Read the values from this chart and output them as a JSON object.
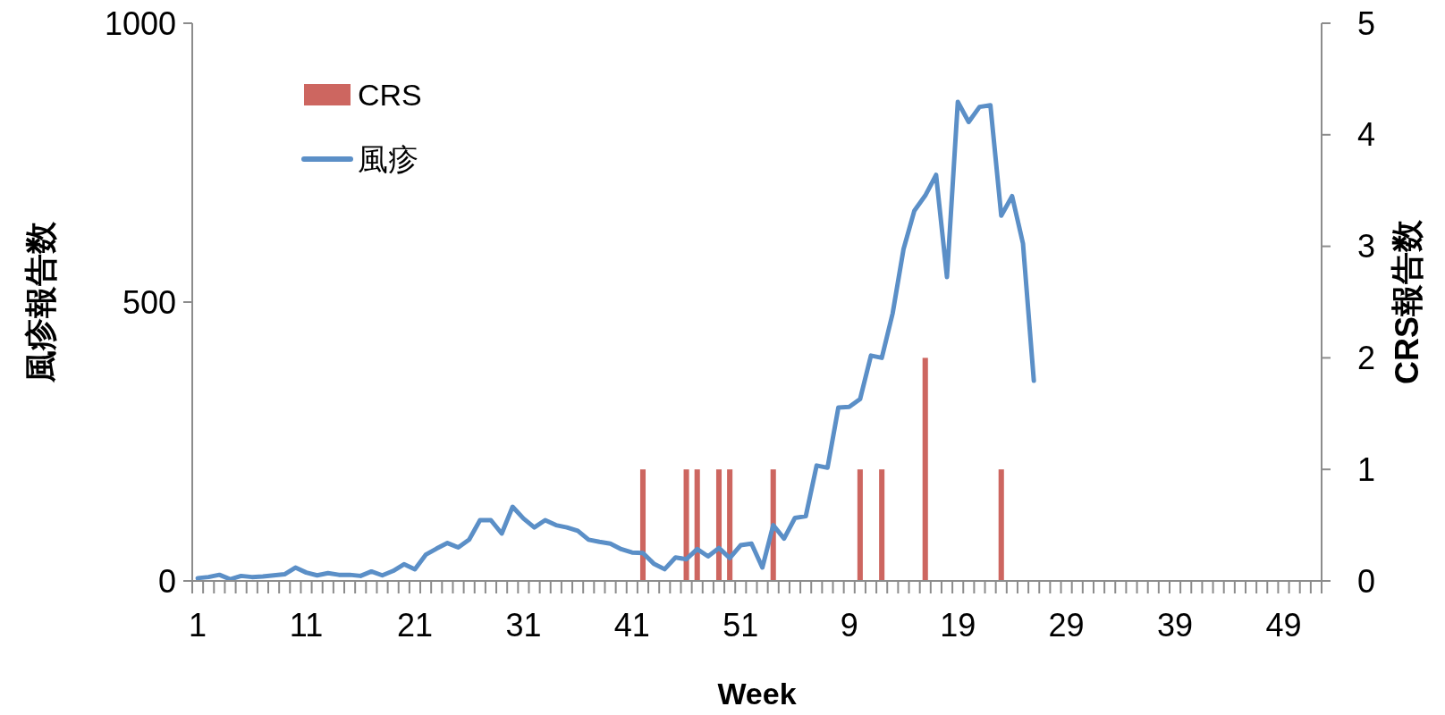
{
  "chart_data": {
    "type": "bar",
    "xlabel": "Week",
    "ylabel": "風疹報告数",
    "y2label": "CRS報告数",
    "categories": [
      "1",
      null,
      null,
      null,
      null,
      null,
      null,
      null,
      null,
      null,
      "11",
      null,
      null,
      null,
      null,
      null,
      null,
      null,
      null,
      null,
      "21",
      null,
      null,
      null,
      null,
      null,
      null,
      null,
      null,
      null,
      "31",
      null,
      null,
      null,
      null,
      null,
      null,
      null,
      null,
      null,
      "41",
      null,
      null,
      null,
      null,
      null,
      null,
      null,
      null,
      null,
      "51",
      null,
      null,
      null,
      null,
      null,
      null,
      null,
      null,
      null,
      "9",
      null,
      null,
      null,
      null,
      null,
      null,
      null,
      null,
      null,
      "19",
      null,
      null,
      null,
      null,
      null,
      null,
      null,
      null,
      null,
      "29",
      null,
      null,
      null,
      null,
      null,
      null,
      null,
      null,
      null,
      "39",
      null,
      null,
      null,
      null,
      null,
      null,
      null,
      null,
      null,
      "49",
      null,
      null,
      null
    ],
    "series": [
      {
        "name": "CRS",
        "axis": "y2",
        "color": "#cd6660",
        "values": [
          null,
          null,
          null,
          null,
          null,
          null,
          null,
          null,
          null,
          null,
          null,
          null,
          null,
          null,
          null,
          null,
          null,
          null,
          null,
          null,
          null,
          null,
          null,
          null,
          null,
          null,
          null,
          null,
          null,
          null,
          null,
          null,
          null,
          null,
          null,
          null,
          null,
          null,
          null,
          null,
          null,
          1,
          null,
          null,
          null,
          1,
          1,
          null,
          1,
          1,
          null,
          null,
          null,
          1,
          null,
          null,
          null,
          null,
          null,
          null,
          null,
          1,
          null,
          1,
          null,
          null,
          null,
          2,
          null,
          null,
          null,
          null,
          null,
          null,
          1,
          null,
          null,
          null,
          null,
          null,
          null,
          null,
          null,
          null,
          null,
          null,
          null,
          null,
          null,
          null,
          null,
          null,
          null,
          null,
          null,
          null,
          null,
          null,
          null,
          null,
          null,
          null,
          null,
          null
        ]
      },
      {
        "name": "風疹",
        "type": "line",
        "color": "#5b8fc7",
        "values": [
          5,
          7,
          11,
          3,
          9,
          7,
          8,
          10,
          12,
          24,
          15,
          10,
          14,
          11,
          11,
          9,
          17,
          10,
          18,
          30,
          21,
          47,
          58,
          68,
          60,
          74,
          109,
          109,
          85,
          133,
          112,
          96,
          109,
          100,
          96,
          90,
          74,
          70,
          67,
          57,
          51,
          50,
          31,
          21,
          42,
          39,
          57,
          44,
          59,
          41,
          64,
          67,
          24,
          100,
          76,
          113,
          116,
          207,
          203,
          311,
          312,
          326,
          404,
          400,
          480,
          595,
          664,
          691,
          728,
          545,
          859,
          823,
          850,
          853,
          655,
          690,
          605,
          359,
          null,
          null,
          null,
          null,
          null,
          null,
          null,
          null,
          null,
          null,
          null,
          null,
          null,
          null,
          null,
          null,
          null,
          null,
          null,
          null,
          null,
          null,
          null,
          null,
          null,
          null
        ]
      }
    ],
    "ylim": [
      0,
      1000
    ],
    "yticks": [
      0,
      500,
      1000
    ],
    "y2lim": [
      0,
      5
    ],
    "y2ticks": [
      0,
      1,
      2,
      3,
      4,
      5
    ],
    "legend": "top left",
    "grid": false,
    "marker": "none",
    "line_style": "solid"
  }
}
